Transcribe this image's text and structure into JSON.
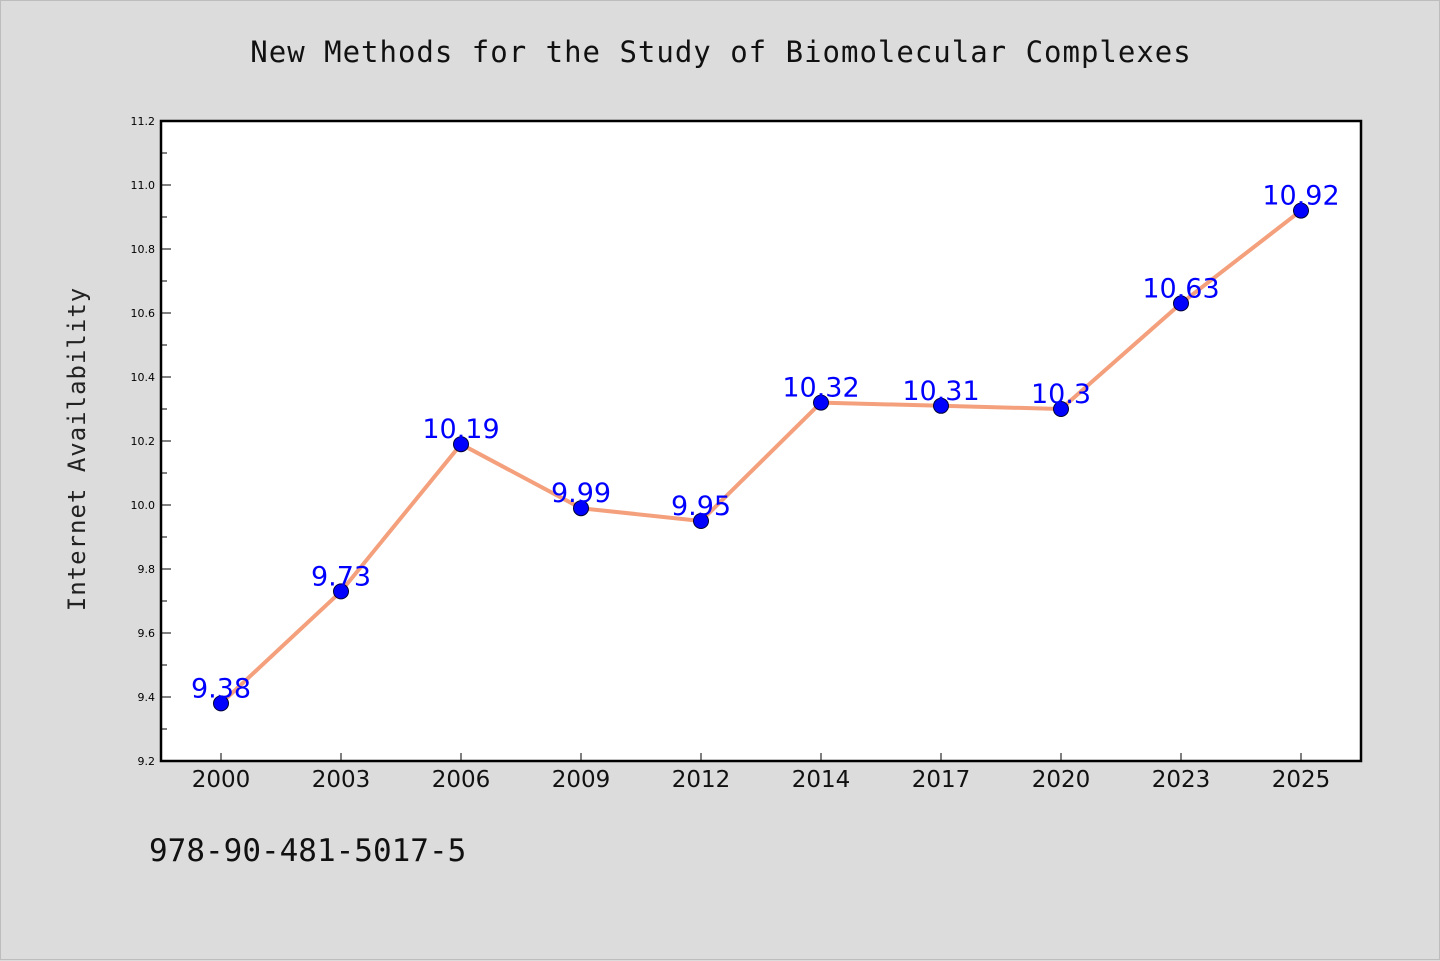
{
  "title": "New Methods for the Study of Biomolecular Complexes",
  "footer_text": "978-90-481-5017-5",
  "colors": {
    "background": "#dcdcdc",
    "plot_background": "#ffffff",
    "line": "#f4a07c",
    "marker": "#0000ff",
    "data_label": "#0000ff"
  },
  "chart_data": {
    "type": "line",
    "title": "New Methods for the Study of Biomolecular Complexes",
    "xlabel": "",
    "ylabel": "Internet Availability",
    "categories": [
      "2000",
      "2003",
      "2006",
      "2009",
      "2012",
      "2014",
      "2017",
      "2020",
      "2023",
      "2025"
    ],
    "series": [
      {
        "values": [
          9.38,
          9.73,
          10.19,
          9.99,
          9.95,
          10.32,
          10.31,
          10.3,
          10.63,
          10.92
        ],
        "labels": [
          "9.38",
          "9.73",
          "10.19",
          "9.99",
          "9.95",
          "10.32",
          "10.31",
          "10.3",
          "10.63",
          "10.92"
        ]
      }
    ],
    "ylim": [
      9.2,
      11.2
    ],
    "yticks": [
      "9.2",
      "9.4",
      "9.6",
      "9.8",
      "10.0",
      "10.2",
      "10.4",
      "10.6",
      "10.8",
      "11.0",
      "11.2"
    ],
    "grid": false,
    "legend": "none"
  }
}
